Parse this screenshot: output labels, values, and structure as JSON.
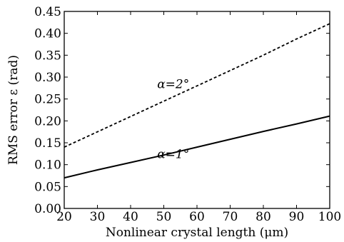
{
  "chart_data": {
    "type": "line",
    "xlabel": "Nonlinear crystal length  (μm)",
    "ylabel": "RMS error ε  (rad)",
    "xlim": [
      20,
      100
    ],
    "ylim": [
      0,
      0.45
    ],
    "x_ticks": [
      20,
      30,
      40,
      50,
      60,
      70,
      80,
      90,
      100
    ],
    "x_tick_labels": [
      "20",
      "30",
      "40",
      "50",
      "60",
      "70",
      "80",
      "90",
      "100"
    ],
    "y_ticks": [
      0,
      0.05,
      0.1,
      0.15,
      0.2,
      0.25,
      0.3,
      0.35,
      0.4,
      0.45
    ],
    "y_tick_labels": [
      "0.00",
      "0.05",
      "0.10",
      "0.15",
      "0.20",
      "0.25",
      "0.30",
      "0.35",
      "0.40",
      "0.45"
    ],
    "grid": false,
    "series": [
      {
        "name": "α=1°",
        "style": "solid",
        "color": "#000000",
        "x": [
          20,
          30,
          40,
          50,
          60,
          70,
          80,
          90,
          100
        ],
        "y": [
          0.07,
          0.088,
          0.105,
          0.122,
          0.14,
          0.158,
          0.176,
          0.193,
          0.211
        ]
      },
      {
        "name": "α=2°",
        "style": "dashed",
        "color": "#000000",
        "x": [
          20,
          30,
          40,
          50,
          60,
          70,
          80,
          90,
          100
        ],
        "y": [
          0.14,
          0.175,
          0.21,
          0.245,
          0.28,
          0.315,
          0.35,
          0.387,
          0.422
        ]
      }
    ],
    "annotations": [
      {
        "text": "α=2°",
        "x": 48,
        "y": 0.275
      },
      {
        "text": "α=1°",
        "x": 48,
        "y": 0.115
      }
    ]
  }
}
